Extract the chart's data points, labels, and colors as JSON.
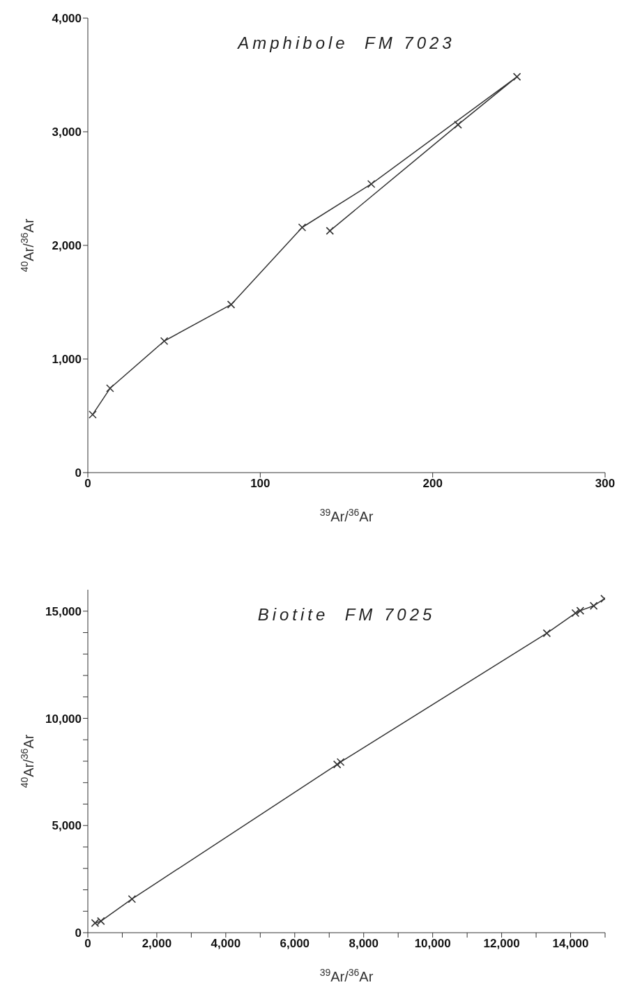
{
  "chart_data": [
    {
      "type": "line",
      "title": "Amphibole  FM 7023",
      "xlabel": "$^{39}$Ar/$^{36}$Ar",
      "ylabel": "$^{40}$Ar/$^{36}$Ar",
      "marker": "cross",
      "xlim": [
        0,
        300
      ],
      "xticks": [
        0,
        100,
        200,
        300
      ],
      "ylim": [
        0,
        4000
      ],
      "yticks": [
        0,
        {
          "value": 1000,
          "label": "1,000"
        },
        {
          "value": 2000,
          "label": "2,000"
        },
        {
          "value": 3000,
          "label": "3,000"
        },
        {
          "value": 4000,
          "label": "4,000"
        }
      ],
      "x": [
        2.8,
        12.9,
        44.3,
        83.1,
        124.3,
        164.4,
        248.9,
        214.7,
        140.4
      ],
      "series": [
        {
          "color": "#333333",
          "values": [
            511,
            742,
            1158,
            1479,
            2158,
            2540,
            3484,
            3062,
            2128
          ]
        }
      ]
    },
    {
      "type": "line",
      "title": "Biotite  FM 7025",
      "xlabel": "$^{39}$Ar/$^{36}$Ar",
      "ylabel": "$^{40}$Ar/$^{36}$Ar",
      "marker": "cross",
      "xlim": [
        0,
        15000
      ],
      "xticks": [
        0,
        {
          "value": 1000,
          "label": null
        },
        {
          "value": 2000,
          "label": "2,000"
        },
        {
          "value": 3000,
          "label": null
        },
        {
          "value": 4000,
          "label": "4,000"
        },
        {
          "value": 5000,
          "label": null
        },
        {
          "value": 6000,
          "label": "6,000"
        },
        {
          "value": 7000,
          "label": null
        },
        {
          "value": 8000,
          "label": "8,000"
        },
        {
          "value": 9000,
          "label": null
        },
        {
          "value": 10000,
          "label": "10,000"
        },
        {
          "value": 11000,
          "label": null
        },
        {
          "value": 12000,
          "label": "12,000"
        },
        {
          "value": 13000,
          "label": null
        },
        {
          "value": 14000,
          "label": "14,000"
        },
        {
          "value": 15000,
          "label": null
        }
      ],
      "ylim": [
        0,
        16000
      ],
      "yticks": [
        0,
        {
          "value": 1000,
          "label": null
        },
        {
          "value": 2000,
          "label": null
        },
        {
          "value": 3000,
          "label": null
        },
        {
          "value": 4000,
          "label": null
        },
        {
          "value": 5000,
          "label": "5,000"
        },
        {
          "value": 6000,
          "label": null
        },
        {
          "value": 7000,
          "label": null
        },
        {
          "value": 8000,
          "label": null
        },
        {
          "value": 9000,
          "label": null
        },
        {
          "value": 10000,
          "label": "10,000"
        },
        {
          "value": 11000,
          "label": null
        },
        {
          "value": 12000,
          "label": null
        },
        {
          "value": 13000,
          "label": null
        },
        {
          "value": 14000,
          "label": null
        },
        {
          "value": 15000,
          "label": "15,000"
        }
      ],
      "x": [
        210,
        380,
        1280,
        7230,
        7330,
        13310,
        14140,
        14280,
        14670,
        14980
      ],
      "series": [
        {
          "color": "#333333",
          "values": [
            450,
            540,
            1570,
            7850,
            7960,
            13970,
            14910,
            15020,
            15250,
            15580
          ]
        }
      ]
    }
  ]
}
